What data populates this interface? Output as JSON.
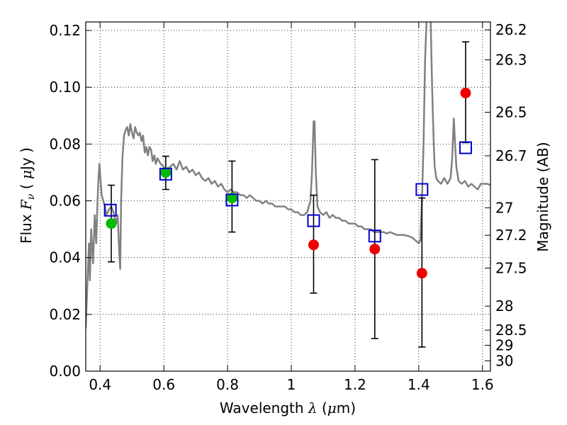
{
  "chart_data": {
    "type": "scatter",
    "title": "",
    "xlabel": {
      "text_before": "Wavelength  ",
      "symbol": "λ",
      "text_after": " (",
      "unit_prefix": "μ",
      "unit_suffix": "m)"
    },
    "ylabel": {
      "text_before": "Flux  ",
      "symbol": "F",
      "subscript": "ν",
      "text_after": "  ( ",
      "unit_prefix": "μ",
      "unit_suffix": "Jy )"
    },
    "y2label": "Magnitude (AB)",
    "xlim": [
      0.355,
      1.625
    ],
    "ylim": [
      0.0,
      0.123
    ],
    "grid": true,
    "x_ticks": [
      {
        "value": 0.4,
        "label": "0.4"
      },
      {
        "value": 0.6,
        "label": "0.6"
      },
      {
        "value": 0.8,
        "label": "0.8"
      },
      {
        "value": 1.0,
        "label": "1"
      },
      {
        "value": 1.2,
        "label": "1.2"
      },
      {
        "value": 1.4,
        "label": "1.4"
      },
      {
        "value": 1.6,
        "label": "1.6"
      }
    ],
    "y_ticks": [
      {
        "value": 0.0,
        "label": "0.00"
      },
      {
        "value": 0.02,
        "label": "0.02"
      },
      {
        "value": 0.04,
        "label": "0.04"
      },
      {
        "value": 0.06,
        "label": "0.06"
      },
      {
        "value": 0.08,
        "label": "0.08"
      },
      {
        "value": 0.1,
        "label": "0.10"
      },
      {
        "value": 0.12,
        "label": "0.12"
      }
    ],
    "y2_ticks": [
      {
        "value": 26.2,
        "label": "26.2"
      },
      {
        "value": 26.3,
        "label": "26.3"
      },
      {
        "value": 26.5,
        "label": "26.5"
      },
      {
        "value": 26.7,
        "label": "26.7"
      },
      {
        "value": 27.0,
        "label": "27"
      },
      {
        "value": 27.2,
        "label": "27.2"
      },
      {
        "value": 27.5,
        "label": "27.5"
      },
      {
        "value": 28.0,
        "label": "28"
      },
      {
        "value": 28.5,
        "label": "28.5"
      },
      {
        "value": 29.0,
        "label": "29"
      },
      {
        "value": 30.0,
        "label": "30"
      }
    ],
    "colors": {
      "model": "#808080",
      "green": "#00bb00",
      "red": "#ee0000",
      "square": "#0000cc",
      "errorbar": "#000000"
    },
    "model_spectrum": [
      [
        0.355,
        0.015
      ],
      [
        0.36,
        0.03
      ],
      [
        0.365,
        0.045
      ],
      [
        0.368,
        0.032
      ],
      [
        0.372,
        0.05
      ],
      [
        0.378,
        0.038
      ],
      [
        0.383,
        0.055
      ],
      [
        0.388,
        0.045
      ],
      [
        0.392,
        0.06
      ],
      [
        0.395,
        0.068
      ],
      [
        0.398,
        0.073
      ],
      [
        0.401,
        0.068
      ],
      [
        0.405,
        0.062
      ],
      [
        0.41,
        0.06
      ],
      [
        0.415,
        0.058
      ],
      [
        0.42,
        0.055
      ],
      [
        0.428,
        0.057
      ],
      [
        0.435,
        0.058
      ],
      [
        0.442,
        0.056
      ],
      [
        0.45,
        0.052
      ],
      [
        0.455,
        0.055
      ],
      [
        0.46,
        0.042
      ],
      [
        0.463,
        0.036
      ],
      [
        0.466,
        0.06
      ],
      [
        0.47,
        0.075
      ],
      [
        0.475,
        0.083
      ],
      [
        0.48,
        0.085
      ],
      [
        0.485,
        0.086
      ],
      [
        0.49,
        0.083
      ],
      [
        0.495,
        0.087
      ],
      [
        0.5,
        0.084
      ],
      [
        0.505,
        0.082
      ],
      [
        0.51,
        0.086
      ],
      [
        0.515,
        0.084
      ],
      [
        0.52,
        0.083
      ],
      [
        0.525,
        0.084
      ],
      [
        0.53,
        0.081
      ],
      [
        0.535,
        0.083
      ],
      [
        0.54,
        0.077
      ],
      [
        0.545,
        0.079
      ],
      [
        0.55,
        0.076
      ],
      [
        0.555,
        0.079
      ],
      [
        0.56,
        0.078
      ],
      [
        0.565,
        0.074
      ],
      [
        0.57,
        0.076
      ],
      [
        0.575,
        0.073
      ],
      [
        0.58,
        0.075
      ],
      [
        0.59,
        0.073
      ],
      [
        0.6,
        0.072
      ],
      [
        0.61,
        0.071
      ],
      [
        0.62,
        0.072
      ],
      [
        0.63,
        0.073
      ],
      [
        0.64,
        0.071
      ],
      [
        0.65,
        0.074
      ],
      [
        0.66,
        0.071
      ],
      [
        0.67,
        0.072
      ],
      [
        0.68,
        0.07
      ],
      [
        0.69,
        0.071
      ],
      [
        0.7,
        0.069
      ],
      [
        0.71,
        0.07
      ],
      [
        0.72,
        0.068
      ],
      [
        0.73,
        0.067
      ],
      [
        0.74,
        0.068
      ],
      [
        0.75,
        0.066
      ],
      [
        0.76,
        0.067
      ],
      [
        0.77,
        0.065
      ],
      [
        0.78,
        0.066
      ],
      [
        0.79,
        0.064
      ],
      [
        0.8,
        0.063
      ],
      [
        0.81,
        0.064
      ],
      [
        0.82,
        0.063
      ],
      [
        0.83,
        0.063
      ],
      [
        0.84,
        0.062
      ],
      [
        0.85,
        0.062
      ],
      [
        0.86,
        0.061
      ],
      [
        0.87,
        0.062
      ],
      [
        0.88,
        0.061
      ],
      [
        0.89,
        0.06
      ],
      [
        0.9,
        0.06
      ],
      [
        0.91,
        0.059
      ],
      [
        0.92,
        0.06
      ],
      [
        0.93,
        0.059
      ],
      [
        0.94,
        0.059
      ],
      [
        0.95,
        0.058
      ],
      [
        0.96,
        0.058
      ],
      [
        0.97,
        0.058
      ],
      [
        0.98,
        0.058
      ],
      [
        0.99,
        0.057
      ],
      [
        1.0,
        0.057
      ],
      [
        1.01,
        0.056
      ],
      [
        1.02,
        0.056
      ],
      [
        1.03,
        0.055
      ],
      [
        1.04,
        0.055
      ],
      [
        1.05,
        0.056
      ],
      [
        1.06,
        0.06
      ],
      [
        1.065,
        0.07
      ],
      [
        1.07,
        0.088
      ],
      [
        1.073,
        0.088
      ],
      [
        1.077,
        0.07
      ],
      [
        1.082,
        0.058
      ],
      [
        1.09,
        0.056
      ],
      [
        1.1,
        0.055
      ],
      [
        1.11,
        0.056
      ],
      [
        1.12,
        0.054
      ],
      [
        1.13,
        0.055
      ],
      [
        1.14,
        0.054
      ],
      [
        1.15,
        0.054
      ],
      [
        1.16,
        0.053
      ],
      [
        1.17,
        0.053
      ],
      [
        1.18,
        0.052
      ],
      [
        1.19,
        0.052
      ],
      [
        1.2,
        0.052
      ],
      [
        1.21,
        0.051
      ],
      [
        1.22,
        0.051
      ],
      [
        1.23,
        0.05
      ],
      [
        1.24,
        0.05
      ],
      [
        1.25,
        0.05
      ],
      [
        1.26,
        0.049
      ],
      [
        1.27,
        0.049
      ],
      [
        1.28,
        0.049
      ],
      [
        1.29,
        0.049
      ],
      [
        1.3,
        0.0485
      ],
      [
        1.31,
        0.049
      ],
      [
        1.32,
        0.0485
      ],
      [
        1.33,
        0.048
      ],
      [
        1.34,
        0.048
      ],
      [
        1.35,
        0.048
      ],
      [
        1.36,
        0.0478
      ],
      [
        1.37,
        0.0475
      ],
      [
        1.38,
        0.047
      ],
      [
        1.385,
        0.0465
      ],
      [
        1.39,
        0.046
      ],
      [
        1.395,
        0.0455
      ],
      [
        1.4,
        0.045
      ],
      [
        1.405,
        0.046
      ],
      [
        1.41,
        0.06
      ],
      [
        1.415,
        0.08
      ],
      [
        1.42,
        0.11
      ],
      [
        1.425,
        0.125
      ],
      [
        1.437,
        0.125
      ],
      [
        1.442,
        0.1
      ],
      [
        1.447,
        0.08
      ],
      [
        1.45,
        0.072
      ],
      [
        1.455,
        0.068
      ],
      [
        1.46,
        0.067
      ],
      [
        1.47,
        0.066
      ],
      [
        1.48,
        0.068
      ],
      [
        1.49,
        0.066
      ],
      [
        1.5,
        0.068
      ],
      [
        1.505,
        0.075
      ],
      [
        1.51,
        0.089
      ],
      [
        1.514,
        0.08
      ],
      [
        1.518,
        0.072
      ],
      [
        1.525,
        0.067
      ],
      [
        1.535,
        0.066
      ],
      [
        1.545,
        0.067
      ],
      [
        1.555,
        0.065
      ],
      [
        1.565,
        0.066
      ],
      [
        1.575,
        0.065
      ],
      [
        1.585,
        0.064
      ],
      [
        1.595,
        0.066
      ],
      [
        1.605,
        0.066
      ],
      [
        1.615,
        0.066
      ],
      [
        1.625,
        0.0655
      ]
    ],
    "observed": [
      {
        "x": 0.435,
        "y": 0.052,
        "yerr_low": 0.0385,
        "yerr_high": 0.0655,
        "color": "green"
      },
      {
        "x": 0.606,
        "y": 0.07,
        "yerr_low": 0.064,
        "yerr_high": 0.0757,
        "color": "green"
      },
      {
        "x": 0.814,
        "y": 0.061,
        "yerr_low": 0.049,
        "yerr_high": 0.074,
        "color": "green"
      },
      {
        "x": 1.07,
        "y": 0.0445,
        "yerr_low": 0.0275,
        "yerr_high": 0.062,
        "color": "red"
      },
      {
        "x": 1.262,
        "y": 0.043,
        "yerr_low": 0.0115,
        "yerr_high": 0.0745,
        "color": "red"
      },
      {
        "x": 1.41,
        "y": 0.0345,
        "yerr_low": 0.0085,
        "yerr_high": 0.061,
        "color": "red"
      },
      {
        "x": 1.547,
        "y": 0.098,
        "yerr_low": 0.0805,
        "yerr_high": 0.116,
        "color": "red"
      }
    ],
    "model_photometry": [
      {
        "x": 0.432,
        "y": 0.0567
      },
      {
        "x": 0.606,
        "y": 0.0694
      },
      {
        "x": 0.814,
        "y": 0.0603
      },
      {
        "x": 1.07,
        "y": 0.053
      },
      {
        "x": 1.262,
        "y": 0.0476
      },
      {
        "x": 1.41,
        "y": 0.064
      },
      {
        "x": 1.547,
        "y": 0.0787
      }
    ]
  }
}
